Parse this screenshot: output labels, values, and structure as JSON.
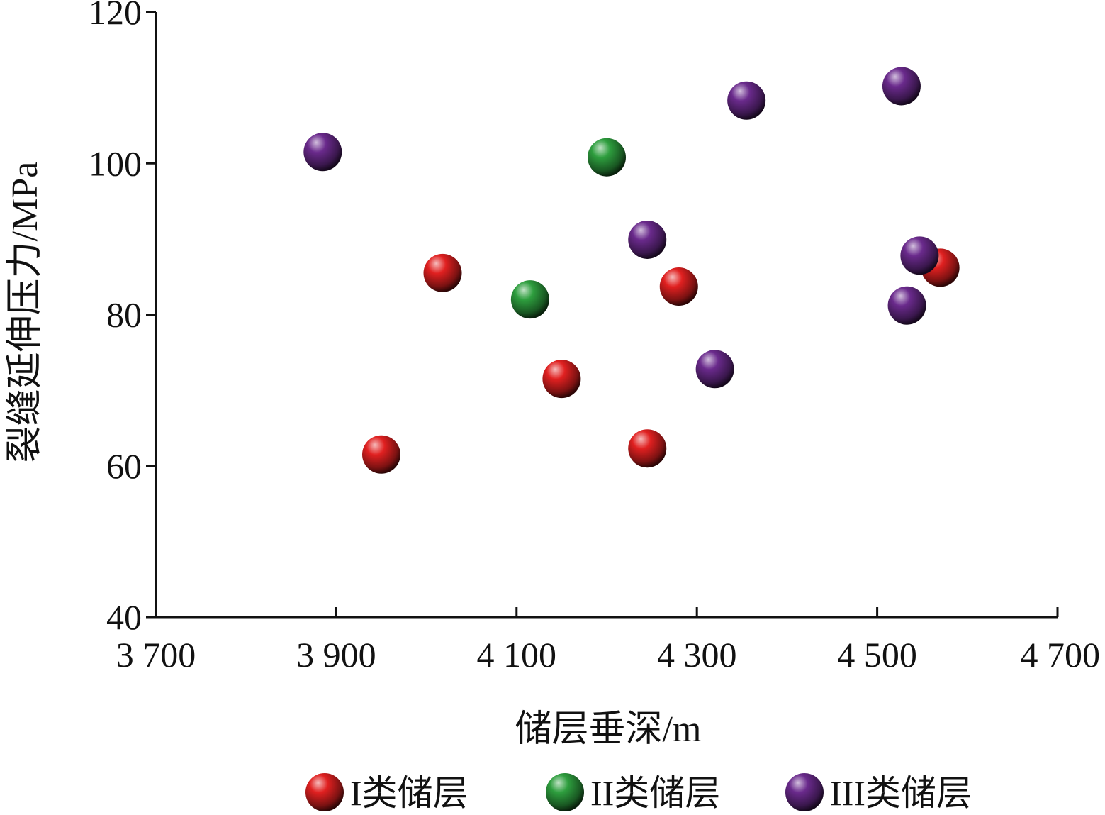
{
  "chart_data": {
    "type": "scatter",
    "xlabel": "储层垂深/m",
    "ylabel": "裂缝延伸压力/MPa",
    "xlim": [
      3700,
      4700
    ],
    "ylim": [
      40,
      120
    ],
    "x_ticks": [
      3700,
      3900,
      4100,
      4300,
      4500,
      4700
    ],
    "x_tick_labels": [
      "3 700",
      "3 900",
      "4 100",
      "4 300",
      "4 500",
      "4 700"
    ],
    "y_ticks": [
      40,
      60,
      80,
      100,
      120
    ],
    "y_tick_labels": [
      "40",
      "60",
      "80",
      "100",
      "120"
    ],
    "grid": false,
    "legend_position": "bottom",
    "series": [
      {
        "name": "I类储层",
        "color": "#e02020",
        "points": [
          {
            "x": 3950,
            "y": 61.5
          },
          {
            "x": 4018,
            "y": 85.5
          },
          {
            "x": 4150,
            "y": 71.5
          },
          {
            "x": 4245,
            "y": 62.3
          },
          {
            "x": 4280,
            "y": 83.7
          },
          {
            "x": 4570,
            "y": 86.2
          }
        ]
      },
      {
        "name": "II类储层",
        "color": "#2e9e3e",
        "points": [
          {
            "x": 4115,
            "y": 82.0
          },
          {
            "x": 4200,
            "y": 100.8
          }
        ]
      },
      {
        "name": "III类储层",
        "color": "#6a2a8c",
        "points": [
          {
            "x": 3885,
            "y": 101.5
          },
          {
            "x": 4245,
            "y": 89.9
          },
          {
            "x": 4320,
            "y": 72.8
          },
          {
            "x": 4355,
            "y": 108.3
          },
          {
            "x": 4527,
            "y": 110.2
          },
          {
            "x": 4533,
            "y": 81.2
          },
          {
            "x": 4547,
            "y": 87.8
          }
        ]
      }
    ]
  }
}
